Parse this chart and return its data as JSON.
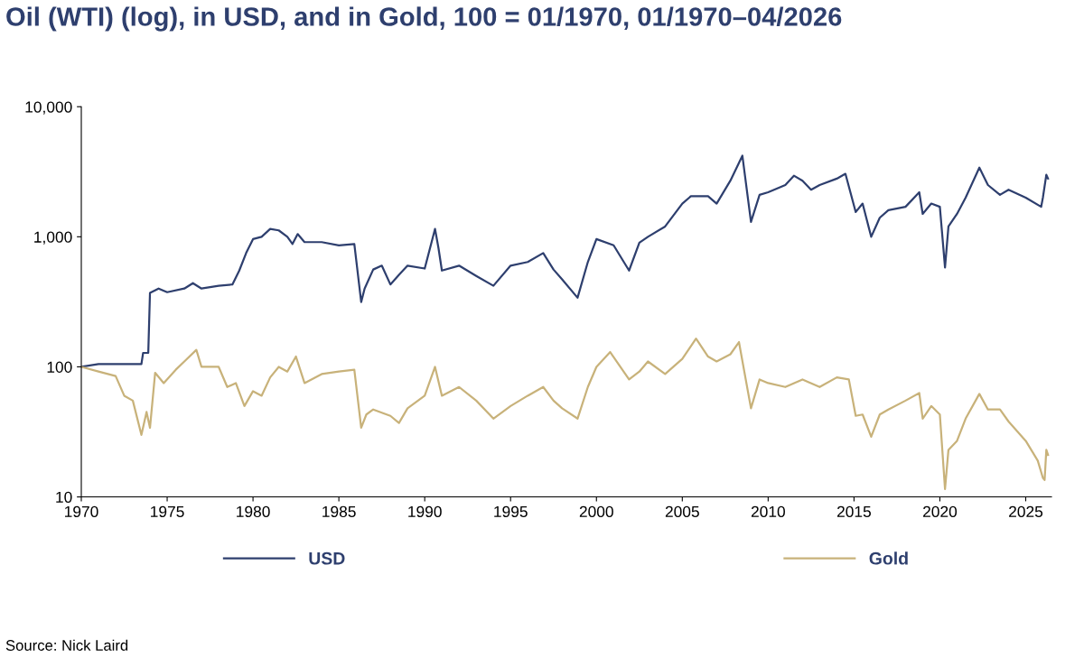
{
  "chart_data": {
    "type": "line",
    "title": "Oil (WTI) (log), in USD, and in Gold, 100 = 01/1970, 01/1970–04/2026",
    "log": true,
    "xlim": [
      1970,
      2026.5
    ],
    "xticks": [
      1970,
      1975,
      1980,
      1985,
      1990,
      1995,
      2000,
      2005,
      2010,
      2015,
      2020,
      2025
    ],
    "ylim": [
      10,
      10000
    ],
    "yticks": [
      10,
      100,
      {
        "value": 1000,
        "label": "1,000"
      },
      {
        "value": 10000,
        "label": "10,000"
      }
    ],
    "grid": false,
    "legend": "bottom",
    "annotations": [
      "Source: Nick Laird"
    ],
    "series": [
      {
        "name": "USD",
        "color": "#2e3f6e",
        "x": [
          1970,
          1971,
          1973.5,
          1973.6,
          1973.9,
          1974.0,
          1974.5,
          1975,
          1976,
          1976.5,
          1977,
          1978,
          1978.8,
          1979.2,
          1979.6,
          1980,
          1980.5,
          1981,
          1981.5,
          1982,
          1982.3,
          1982.6,
          1983,
          1984,
          1985,
          1985.9,
          1986.3,
          1986.5,
          1987,
          1987.5,
          1988,
          1988.5,
          1989,
          1990,
          1990.6,
          1990.8,
          1991,
          1992,
          1993,
          1994,
          1995,
          1996,
          1996.9,
          1997.5,
          1998,
          1998.9,
          1999.5,
          2000,
          2001,
          2001.9,
          2002.5,
          2003,
          2004,
          2005,
          2005.5,
          2006.5,
          2007,
          2007.8,
          2008.5,
          2009.0,
          2009.5,
          2010,
          2011,
          2011.5,
          2012,
          2012.5,
          2013,
          2014,
          2014.5,
          2015.1,
          2015.5,
          2016,
          2016.5,
          2017,
          2018,
          2018.8,
          2019,
          2019.5,
          2020.0,
          2020.3,
          2020.5,
          2021,
          2021.5,
          2022.3,
          2022.8,
          2023.5,
          2024,
          2025,
          2025.9,
          2026.0,
          2026.2,
          2026.3
        ],
        "values": [
          100,
          105,
          105,
          128,
          128,
          370,
          400,
          375,
          400,
          440,
          400,
          420,
          430,
          550,
          750,
          960,
          1000,
          1150,
          1120,
          1000,
          880,
          1050,
          910,
          910,
          860,
          880,
          315,
          400,
          560,
          600,
          430,
          510,
          600,
          570,
          1150,
          820,
          550,
          600,
          500,
          420,
          600,
          640,
          750,
          560,
          470,
          340,
          640,
          960,
          860,
          550,
          900,
          1000,
          1200,
          1800,
          2050,
          2050,
          1800,
          2700,
          4200,
          1300,
          2100,
          2200,
          2500,
          2950,
          2700,
          2300,
          2500,
          2800,
          3050,
          1550,
          1800,
          1000,
          1400,
          1600,
          1700,
          2200,
          1500,
          1800,
          1700,
          580,
          1200,
          1500,
          2000,
          3400,
          2500,
          2100,
          2300,
          2000,
          1700,
          2000,
          3000,
          2800
        ]
      },
      {
        "name": "Gold",
        "color": "#c8b27a",
        "x": [
          1970,
          1971,
          1972,
          1972.5,
          1973,
          1973.5,
          1973.8,
          1974.0,
          1974.3,
          1974.8,
          1975.5,
          1976,
          1976.7,
          1977,
          1978,
          1978.5,
          1979,
          1979.5,
          1980,
          1980.5,
          1981,
          1981.5,
          1982,
          1982.5,
          1983,
          1984,
          1985,
          1985.9,
          1986.3,
          1986.6,
          1987,
          1988,
          1988.5,
          1989,
          1990,
          1990.6,
          1991,
          1992,
          1993,
          1994,
          1995,
          1996,
          1996.9,
          1997.5,
          1998,
          1998.9,
          1999.5,
          2000,
          2000.8,
          2001.9,
          2002.5,
          2003,
          2004,
          2005,
          2005.8,
          2006.5,
          2007,
          2007.8,
          2008.3,
          2009.0,
          2009.5,
          2010,
          2011,
          2012,
          2013,
          2014,
          2014.7,
          2015.1,
          2015.5,
          2016,
          2016.5,
          2017,
          2018,
          2018.8,
          2019,
          2019.5,
          2020.0,
          2020.3,
          2020.5,
          2021,
          2021.5,
          2022.3,
          2022.8,
          2023.5,
          2024,
          2025,
          2025.7,
          2026.0,
          2026.1,
          2026.2,
          2026.3
        ],
        "values": [
          100,
          92,
          85,
          60,
          55,
          30,
          45,
          34,
          90,
          75,
          95,
          110,
          135,
          100,
          100,
          70,
          75,
          50,
          65,
          60,
          83,
          100,
          92,
          120,
          75,
          88,
          92,
          95,
          34,
          43,
          47,
          42,
          37,
          48,
          60,
          100,
          60,
          70,
          55,
          40,
          50,
          60,
          70,
          55,
          48,
          40,
          70,
          100,
          130,
          80,
          92,
          110,
          88,
          115,
          165,
          120,
          110,
          125,
          155,
          48,
          80,
          75,
          70,
          80,
          70,
          83,
          80,
          42,
          43,
          29,
          43,
          47,
          55,
          63,
          40,
          50,
          43,
          11.5,
          23,
          27,
          40,
          62,
          47,
          47,
          38,
          27,
          19,
          14,
          13.5,
          23,
          21
        ]
      }
    ]
  }
}
